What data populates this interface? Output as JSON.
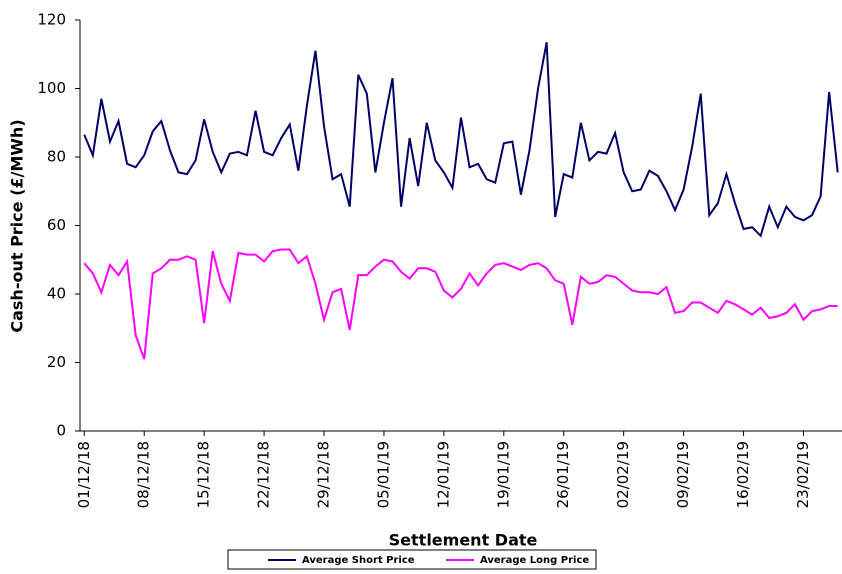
{
  "chart_data": {
    "type": "line",
    "x_label": "Settlement Date",
    "y_label": "Cash-out Price (£/MWh)",
    "categories": [
      "01/12/18",
      null,
      null,
      null,
      null,
      null,
      null,
      "08/12/18",
      null,
      null,
      null,
      null,
      null,
      null,
      "15/12/18",
      null,
      null,
      null,
      null,
      null,
      null,
      "22/12/18",
      null,
      null,
      null,
      null,
      null,
      null,
      "29/12/18",
      null,
      null,
      null,
      null,
      null,
      null,
      "05/01/19",
      null,
      null,
      null,
      null,
      null,
      null,
      "12/01/19",
      null,
      null,
      null,
      null,
      null,
      null,
      "19/01/19",
      null,
      null,
      null,
      null,
      null,
      null,
      "26/01/19",
      null,
      null,
      null,
      null,
      null,
      null,
      "02/02/19",
      null,
      null,
      null,
      null,
      null,
      null,
      "09/02/19",
      null,
      null,
      null,
      null,
      null,
      null,
      "16/02/19",
      null,
      null,
      null,
      null,
      null,
      null,
      "23/02/19",
      null,
      null,
      null,
      null
    ],
    "series": [
      {
        "name": "Average Short Price",
        "color": "#000066",
        "values": [
          86.5,
          80.5,
          97,
          84.5,
          90.5,
          78,
          77,
          80.5,
          87.5,
          90.5,
          82,
          75.5,
          75,
          79,
          91,
          81.5,
          75.5,
          81,
          81.5,
          80.5,
          93.5,
          81.5,
          80.5,
          85.5,
          89.5,
          76,
          95,
          111,
          89,
          73.5,
          75,
          65.5,
          104,
          98.5,
          75.5,
          90,
          103,
          65.5,
          85.5,
          71.5,
          90,
          79,
          75.5,
          71,
          91.5,
          77,
          78,
          73.5,
          72.5,
          84,
          84.5,
          69,
          82,
          100,
          113.5,
          62.5,
          75,
          74,
          90,
          79,
          81.5,
          81,
          87,
          75.5,
          70,
          70.5,
          76,
          74.5,
          70,
          64.5,
          70.5,
          83,
          98.5,
          63,
          66.5,
          75,
          66.5,
          59,
          59.5,
          57,
          65.5,
          59.5,
          65.5,
          62.5,
          61.5,
          63,
          68.5,
          99,
          75.5
        ]
      },
      {
        "name": "Average Long Price",
        "color": "#ff00ff",
        "values": [
          49,
          46,
          40.5,
          48.5,
          45.5,
          49.5,
          28,
          21,
          46,
          47.5,
          50,
          50,
          51,
          50,
          31.5,
          52.5,
          43,
          38,
          52,
          51.5,
          51.5,
          49.5,
          52.5,
          53,
          53,
          49,
          51,
          43,
          32.5,
          40.5,
          41.5,
          29.5,
          45.5,
          45.5,
          48,
          50,
          49.5,
          46.5,
          44.5,
          47.5,
          47.5,
          46.5,
          41,
          39,
          41.5,
          46,
          42.5,
          46,
          48.5,
          49,
          48,
          47,
          48.5,
          49,
          47.5,
          44,
          43,
          31,
          45,
          43,
          43.5,
          45.5,
          45,
          43,
          41,
          40.5,
          40.5,
          40,
          42,
          34.5,
          35,
          37.5,
          37.5,
          36,
          34.5,
          38,
          37,
          35.5,
          34,
          36,
          33,
          33.5,
          34.5,
          37,
          32.5,
          35,
          35.5,
          36.5,
          36.5
        ]
      }
    ],
    "ylim": [
      0,
      120
    ],
    "yticks": [
      0,
      20,
      40,
      60,
      80,
      100,
      120
    ],
    "grid": false,
    "legend": "bottom"
  }
}
